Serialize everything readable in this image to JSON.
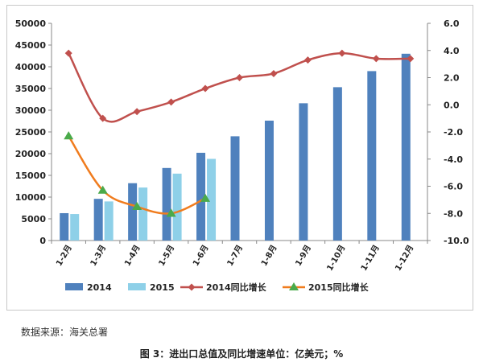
{
  "source_note": "数据来源：海关总署",
  "figure_caption": "图 3：进出口总值及同比增速单位：亿美元；%",
  "chart_data": {
    "type": "bar",
    "categories": [
      "1-2月",
      "1-3月",
      "1-4月",
      "1-5月",
      "1-6月",
      "1-7月",
      "1-8月",
      "1-9月",
      "1-10月",
      "1-11月",
      "1-12月"
    ],
    "y_left": {
      "ticks": [
        "0",
        "5000",
        "10000",
        "15000",
        "20000",
        "25000",
        "30000",
        "35000",
        "40000",
        "45000",
        "50000"
      ],
      "ylim": [
        0,
        50000
      ]
    },
    "y_right": {
      "ticks": [
        "-10.0",
        "-8.0",
        "-6.0",
        "-4.0",
        "-2.0",
        "0.0",
        "2.0",
        "4.0",
        "6.0"
      ],
      "ylim": [
        -10,
        6
      ]
    },
    "bar_series": [
      {
        "name": "2014",
        "color": "#4f81bd",
        "values": [
          6300,
          9600,
          13200,
          16700,
          20200,
          24000,
          27600,
          31600,
          35300,
          39000,
          43000
        ]
      },
      {
        "name": "2015",
        "color": "#8ed0e8",
        "values": [
          6100,
          9000,
          12200,
          15400,
          18800,
          null,
          null,
          null,
          null,
          null,
          null
        ]
      }
    ],
    "line_series": [
      {
        "name": "2014同比增长",
        "color": "#c0504d",
        "marker": "diamond",
        "values": [
          3.8,
          -1.0,
          -0.5,
          0.2,
          1.2,
          2.0,
          2.3,
          3.3,
          3.8,
          3.4,
          3.4
        ]
      },
      {
        "name": "2015同比增长",
        "color": "#f07c1e",
        "marker_color": "#4aaa4a",
        "marker": "triangle",
        "values": [
          -2.3,
          -6.3,
          -7.5,
          -8.0,
          -6.9,
          null,
          null,
          null,
          null,
          null,
          null
        ]
      }
    ],
    "legend": {
      "position": "bottom",
      "labels": [
        "2014",
        "2015",
        "2014同比增长",
        "2015同比增长"
      ]
    }
  }
}
